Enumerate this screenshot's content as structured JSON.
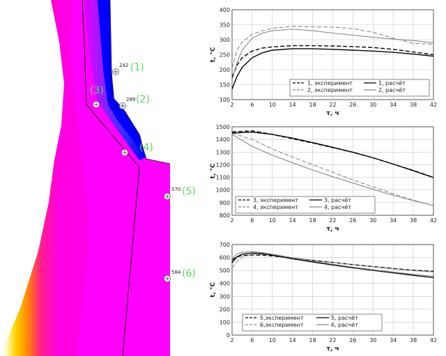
{
  "probes": [
    {
      "value": "242",
      "label": "(1)"
    },
    {
      "value": "289",
      "label": "(2)"
    },
    {
      "value": "...",
      "label": "(3)"
    },
    {
      "value": "...",
      "label": "(4)"
    },
    {
      "value": "570",
      "label": "(5)"
    },
    {
      "value": "584",
      "label": "(6)"
    }
  ],
  "chart_data": [
    {
      "type": "line",
      "xlabel": "τ, ч",
      "ylabel": "t, °C",
      "xlim": [
        2,
        42
      ],
      "ylim": [
        100,
        400
      ],
      "xticks": [
        2,
        6,
        10,
        14,
        18,
        22,
        26,
        30,
        34,
        38,
        42
      ],
      "yticks": [
        100,
        150,
        200,
        250,
        300,
        350,
        400
      ],
      "grid": true,
      "legend_position": "bottom-right",
      "series": [
        {
          "name": "1, эксперимент",
          "style": "dashed",
          "color": "#000000",
          "x": [
            2,
            3,
            4,
            6,
            8,
            10,
            14,
            18,
            22,
            26,
            30,
            34,
            38,
            42
          ],
          "y": [
            175,
            215,
            240,
            262,
            272,
            276,
            280,
            280,
            279,
            277,
            274,
            268,
            259,
            250
          ]
        },
        {
          "name": "2, эксперимент",
          "style": "dashed",
          "color": "#888888",
          "x": [
            2,
            3,
            4,
            6,
            8,
            10,
            14,
            18,
            22,
            26,
            30,
            34,
            38,
            42
          ],
          "y": [
            205,
            265,
            292,
            318,
            330,
            338,
            345,
            343,
            342,
            337,
            325,
            305,
            288,
            285
          ]
        },
        {
          "name": "1, расчёт",
          "style": "solid",
          "color": "#000000",
          "x": [
            2,
            3,
            4,
            6,
            8,
            10,
            14,
            18,
            22,
            26,
            30,
            34,
            38,
            42
          ],
          "y": [
            135,
            178,
            208,
            240,
            256,
            265,
            270,
            270,
            268,
            265,
            262,
            258,
            252,
            245
          ]
        },
        {
          "name": "2, расчёт",
          "style": "solid",
          "color": "#888888",
          "x": [
            2,
            3,
            4,
            6,
            8,
            10,
            14,
            18,
            22,
            26,
            30,
            34,
            38,
            42
          ],
          "y": [
            165,
            225,
            265,
            305,
            322,
            330,
            335,
            330,
            322,
            315,
            308,
            302,
            297,
            290
          ]
        }
      ]
    },
    {
      "type": "line",
      "xlabel": "τ, ч",
      "ylabel": "t, °C",
      "xlim": [
        2,
        42
      ],
      "ylim": [
        800,
        1500
      ],
      "xticks": [
        2,
        6,
        10,
        14,
        18,
        22,
        26,
        30,
        34,
        38,
        42
      ],
      "yticks": [
        800,
        900,
        1000,
        1100,
        1200,
        1300,
        1400,
        1500
      ],
      "grid": true,
      "legend_position": "bottom-left",
      "series": [
        {
          "name": "3, эксперимент",
          "style": "dashed",
          "color": "#000000",
          "x": [
            2,
            6,
            10,
            14,
            18,
            22,
            26,
            30,
            34,
            38,
            42
          ],
          "y": [
            1460,
            1468,
            1440,
            1405,
            1372,
            1335,
            1298,
            1255,
            1205,
            1155,
            1100
          ]
        },
        {
          "name": "4, эксперимент",
          "style": "dashed",
          "color": "#888888",
          "x": [
            2,
            6,
            10,
            14,
            18,
            22,
            26,
            30,
            34,
            38,
            42
          ],
          "y": [
            1450,
            1400,
            1325,
            1260,
            1200,
            1140,
            1080,
            1025,
            970,
            920,
            875
          ]
        },
        {
          "name": "3, расчёт",
          "style": "solid",
          "color": "#000000",
          "x": [
            2,
            6,
            10,
            14,
            18,
            22,
            26,
            30,
            34,
            38,
            42
          ],
          "y": [
            1450,
            1458,
            1440,
            1410,
            1375,
            1338,
            1298,
            1255,
            1205,
            1152,
            1098
          ]
        },
        {
          "name": "4, расчёт",
          "style": "solid",
          "color": "#888888",
          "x": [
            2,
            6,
            10,
            14,
            18,
            22,
            26,
            30,
            34,
            38,
            42
          ],
          "y": [
            1440,
            1345,
            1275,
            1215,
            1158,
            1105,
            1055,
            1005,
            958,
            915,
            878
          ]
        }
      ]
    },
    {
      "type": "line",
      "xlabel": "τ, ч",
      "ylabel": "t, °C",
      "xlim": [
        2,
        42
      ],
      "ylim": [
        0,
        700
      ],
      "xticks": [
        2,
        6,
        10,
        14,
        18,
        22,
        26,
        30,
        34,
        38,
        42
      ],
      "yticks": [
        0,
        100,
        200,
        300,
        400,
        500,
        600,
        700
      ],
      "grid": true,
      "legend_position": "bottom-center",
      "series": [
        {
          "name": "5,эксперимент",
          "style": "dashed",
          "color": "#000000",
          "x": [
            2,
            3,
            4,
            6,
            8,
            10,
            14,
            18,
            22,
            26,
            30,
            34,
            38,
            42
          ],
          "y": [
            580,
            605,
            615,
            620,
            618,
            612,
            595,
            578,
            562,
            545,
            530,
            515,
            502,
            492
          ]
        },
        {
          "name": "6,эксперимент",
          "style": "dashed",
          "color": "#888888",
          "x": [
            2,
            3,
            4,
            6,
            8,
            10,
            14,
            18,
            22,
            26,
            30,
            34,
            38,
            42
          ],
          "y": [
            520,
            570,
            600,
            625,
            625,
            618,
            598,
            580,
            562,
            545,
            528,
            512,
            498,
            488
          ]
        },
        {
          "name": "5, расчёт",
          "style": "solid",
          "color": "#000000",
          "x": [
            2,
            3,
            4,
            6,
            8,
            10,
            14,
            18,
            22,
            26,
            30,
            34,
            38,
            42
          ],
          "y": [
            560,
            605,
            625,
            635,
            630,
            618,
            590,
            565,
            542,
            520,
            500,
            482,
            462,
            445
          ]
        },
        {
          "name": "6, расчёт",
          "style": "solid",
          "color": "#888888",
          "x": [
            2,
            3,
            4,
            6,
            8,
            10,
            14,
            18,
            22,
            26,
            30,
            34,
            38,
            42
          ],
          "y": [
            590,
            625,
            640,
            645,
            638,
            625,
            598,
            572,
            548,
            525,
            505,
            487,
            470,
            455
          ]
        }
      ]
    }
  ]
}
